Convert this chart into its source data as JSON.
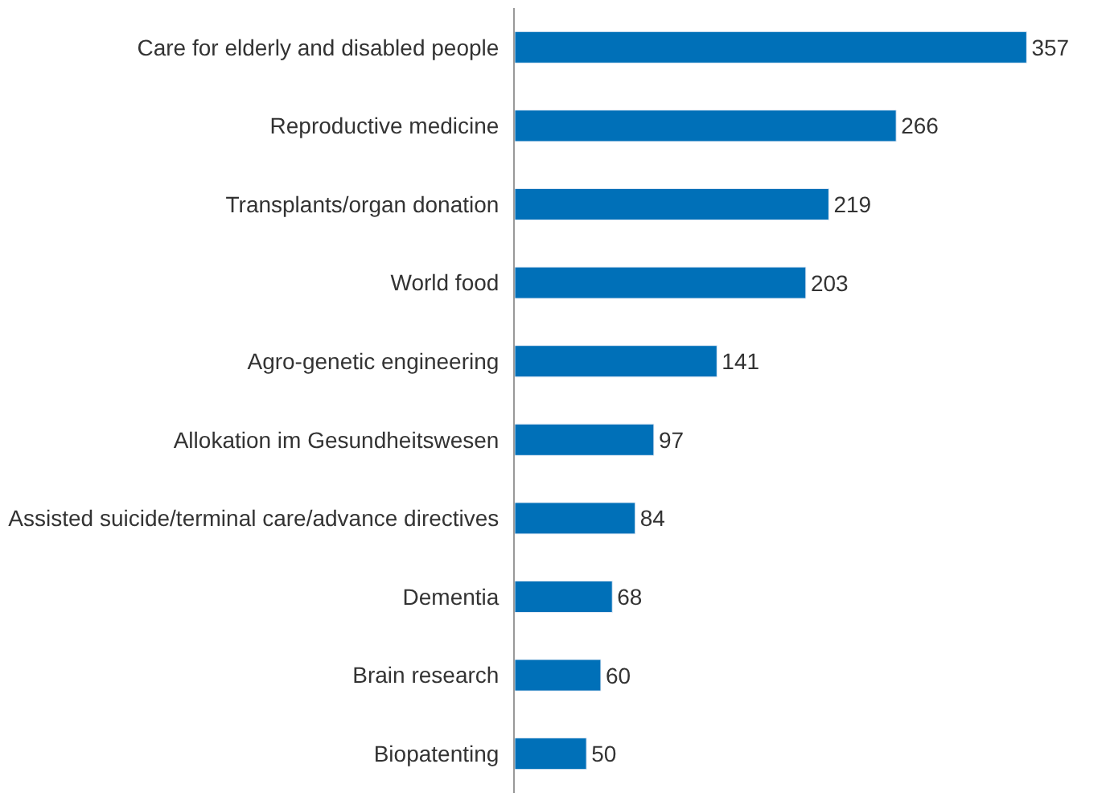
{
  "chart_data": {
    "type": "bar",
    "orientation": "horizontal",
    "categories": [
      "Care for elderly and disabled people",
      "Reproductive medicine",
      "Transplants/organ donation",
      "World food",
      "Agro-genetic engineering",
      "Allokation im Gesundheitswesen",
      "Assisted suicide/terminal care/advance directives",
      "Dementia",
      "Brain research",
      "Biopatenting"
    ],
    "values": [
      357,
      266,
      219,
      203,
      141,
      97,
      84,
      68,
      60,
      50
    ],
    "color": "#0070b8",
    "data_labels": true,
    "legend": false
  }
}
